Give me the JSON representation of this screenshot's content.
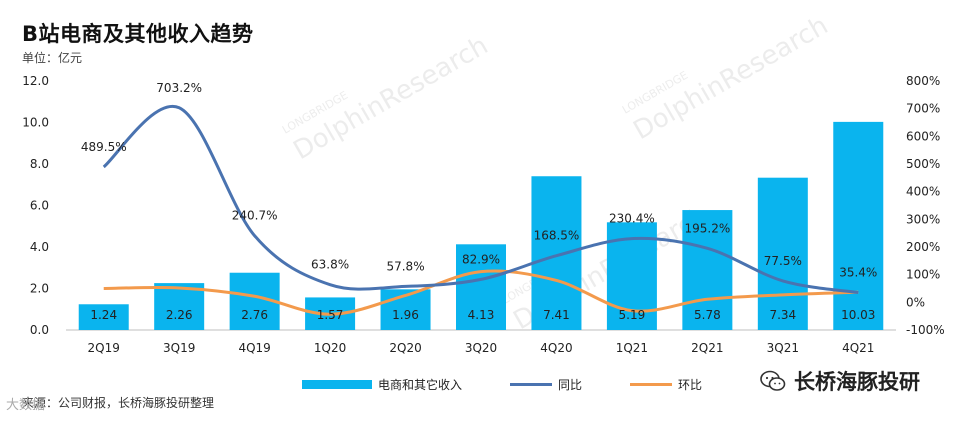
{
  "header": {
    "title": "B站电商及其他收入趋势",
    "unit": "单位：亿元"
  },
  "legend": {
    "bar_label": "电商和其它收入",
    "yoy_label": "同比",
    "qoq_label": "环比"
  },
  "footer": {
    "source": "来源：公司财报，长桥海豚投研整理",
    "brand": "长桥海豚投研",
    "bottom_mark": "大数据"
  },
  "watermark": {
    "text_top": "LONGBRIDGE",
    "text_main": "DolphinResearch"
  },
  "colors": {
    "bar": "#0ab4ee",
    "yoy": "#4a73b0",
    "qoq": "#f39a4c"
  },
  "chart_data": {
    "type": "bar",
    "categories": [
      "2Q19",
      "3Q19",
      "4Q19",
      "1Q20",
      "2Q20",
      "3Q20",
      "4Q20",
      "1Q21",
      "2Q21",
      "3Q21",
      "4Q21"
    ],
    "series": [
      {
        "name": "电商和其它收入",
        "type": "bar",
        "axis": "left",
        "values": [
          1.24,
          2.26,
          2.76,
          1.57,
          1.96,
          4.13,
          7.41,
          5.19,
          5.78,
          7.34,
          10.03
        ],
        "labels": [
          "1.24",
          "2.26",
          "2.76",
          "1.57",
          "1.96",
          "4.13",
          "7.41",
          "5.19",
          "5.78",
          "7.34",
          "10.03"
        ]
      },
      {
        "name": "同比",
        "type": "line",
        "axis": "right",
        "values": [
          489.5,
          703.2,
          240.7,
          63.8,
          57.8,
          82.9,
          168.5,
          230.4,
          195.2,
          77.5,
          35.4
        ],
        "labels": [
          "489.5%",
          "703.2%",
          "240.7%",
          "63.8%",
          "57.8%",
          "82.9%",
          "168.5%",
          "230.4%",
          "195.2%",
          "77.5%",
          "35.4%"
        ]
      },
      {
        "name": "环比",
        "type": "line",
        "axis": "right",
        "values": [
          50,
          52,
          22,
          -43,
          25,
          111,
          79,
          -30,
          11,
          27,
          37
        ]
      }
    ],
    "y_left": {
      "min": 0,
      "max": 12,
      "step": 2,
      "ticks": [
        "0.0",
        "2.0",
        "4.0",
        "6.0",
        "8.0",
        "10.0",
        "12.0"
      ]
    },
    "y_right": {
      "min": -100,
      "max": 800,
      "step": 100,
      "ticks": [
        "-100%",
        "0%",
        "100%",
        "200%",
        "300%",
        "400%",
        "500%",
        "600%",
        "700%",
        "800%"
      ]
    },
    "grid": false,
    "legend_position": "bottom"
  }
}
